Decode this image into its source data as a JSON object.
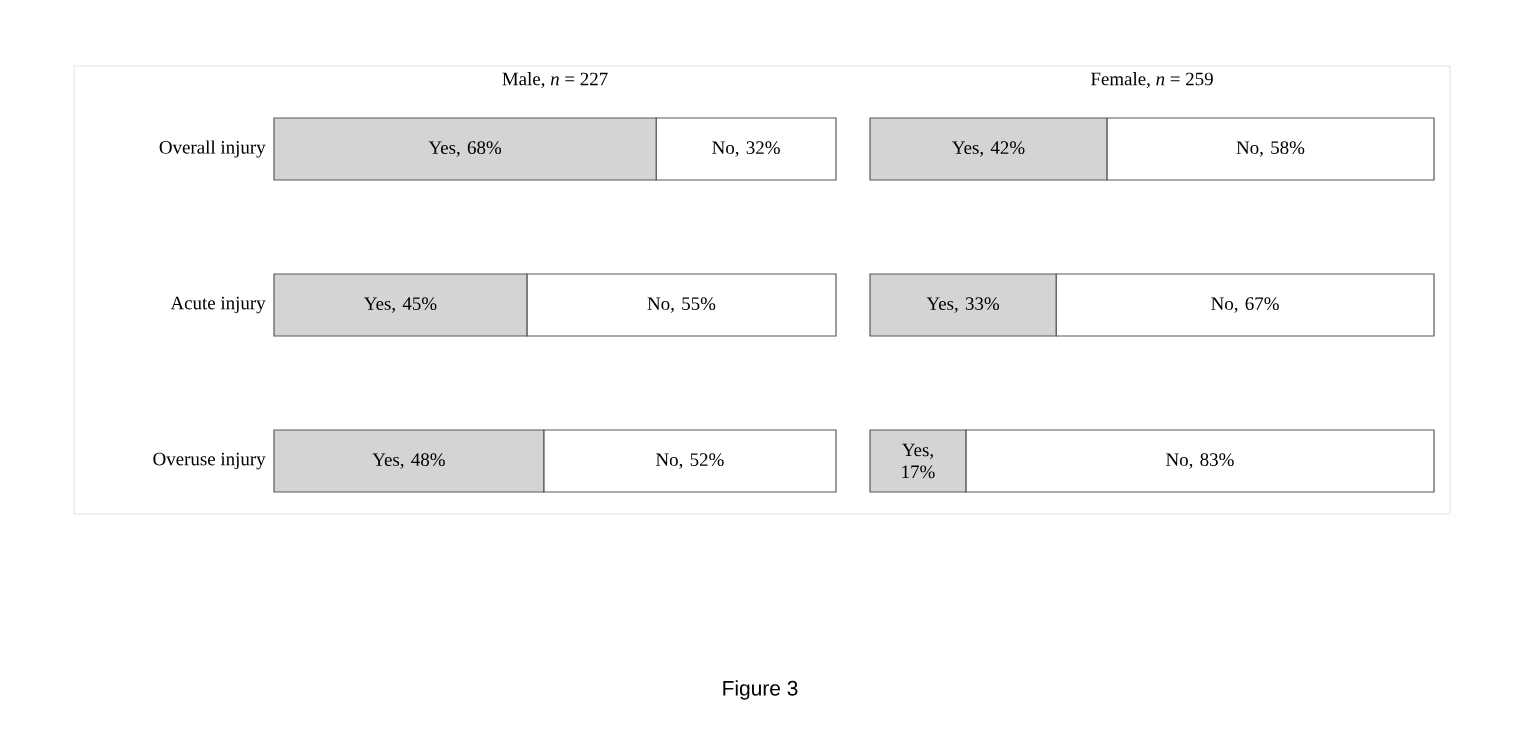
{
  "chart_data": [
    {
      "type": "bar",
      "orientation": "horizontal",
      "stacked": true,
      "title": "Male, *n* = 227",
      "categories": [
        "Overall injury",
        "Acute injury",
        "Overuse injury"
      ],
      "tick_labels": "y",
      "annotations": [
        "Figure 3"
      ],
      "series": [
        {
          "color": "#d4d4d4",
          "values": [
            68,
            45,
            48
          ],
          "value_labels": [
            "Yes, 68%",
            "Yes, 45%",
            "Yes, 48%"
          ]
        },
        {
          "color": "#ffffff",
          "values": [
            32,
            55,
            52
          ],
          "value_labels": [
            "No, 32%",
            "No, 55%",
            "No, 52%"
          ]
        }
      ]
    },
    {
      "type": "bar",
      "orientation": "horizontal",
      "stacked": true,
      "title": "Female, *n* = 259",
      "categories": [
        null,
        null,
        null
      ],
      "series": [
        {
          "color": "#d4d4d4",
          "values": [
            42,
            33,
            17
          ],
          "value_labels": [
            "Yes, 42%",
            "Yes, 33%",
            "Yes, 17%"
          ]
        },
        {
          "color": "#ffffff",
          "values": [
            58,
            67,
            83
          ],
          "value_labels": [
            "No, 58%",
            "No, 67%",
            "No, 83%"
          ]
        }
      ]
    }
  ]
}
